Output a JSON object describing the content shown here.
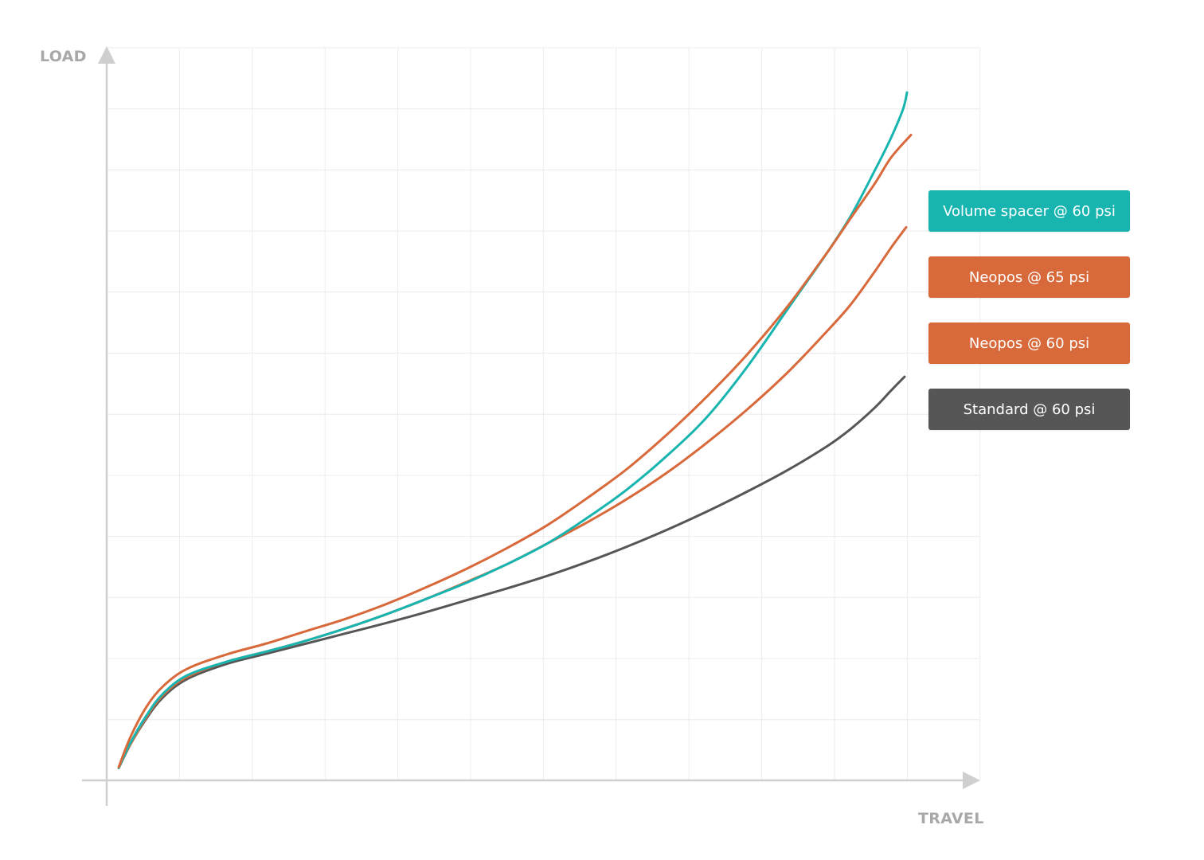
{
  "chart_data": {
    "type": "line",
    "title": "",
    "xlabel": "TRAVEL",
    "ylabel": "LOAD",
    "xlim": [
      0,
      100
    ],
    "ylim": [
      0,
      100
    ],
    "grid": true,
    "ticks_labeled": false,
    "legend_placement": "right",
    "series": [
      {
        "name": "Volume spacer @ 60 psi",
        "color": "#18b5b0",
        "x": [
          1.5,
          3,
          5,
          7,
          10,
          15,
          20,
          25,
          30,
          35,
          40,
          45,
          50,
          55,
          60,
          65,
          70,
          75,
          80,
          85,
          90,
          93,
          96,
          98,
          99.5,
          100
        ],
        "y": [
          1.7,
          5.2,
          8.9,
          11.8,
          14.3,
          16.2,
          17.6,
          19.1,
          20.8,
          22.7,
          24.8,
          27.0,
          29.5,
          32.3,
          35.8,
          39.7,
          44.3,
          49.6,
          56.4,
          64.2,
          72.0,
          77.1,
          83.3,
          87.7,
          91.6,
          93.9
        ]
      },
      {
        "name": "Neopos @ 65 psi",
        "color": "#d8693b",
        "x": [
          1.5,
          3,
          5,
          7,
          10,
          15,
          20,
          25,
          30,
          35,
          40,
          45,
          50,
          55,
          60,
          65,
          70,
          75,
          80,
          85,
          90,
          93,
          96,
          98,
          100.5
        ],
        "y": [
          1.8,
          6.0,
          10.1,
          12.8,
          15.2,
          17.2,
          18.7,
          20.4,
          22.1,
          24.1,
          26.4,
          28.9,
          31.7,
          34.8,
          38.5,
          42.5,
          47.2,
          52.4,
          58.1,
          64.6,
          72.0,
          76.8,
          81.5,
          85.0,
          88.1
        ]
      },
      {
        "name": "Neopos @ 60 psi",
        "color": "#d8693b",
        "x": [
          1.5,
          3,
          5,
          7,
          10,
          15,
          20,
          25,
          30,
          35,
          40,
          45,
          50,
          55,
          60,
          65,
          70,
          75,
          80,
          85,
          90,
          93,
          96,
          98,
          99.9
        ],
        "y": [
          1.7,
          5.0,
          8.7,
          11.6,
          14.1,
          16.2,
          17.6,
          19.1,
          20.8,
          22.7,
          24.8,
          27.1,
          29.5,
          32.3,
          35.2,
          38.4,
          42.0,
          46.1,
          50.6,
          55.6,
          61.3,
          65.0,
          69.5,
          72.7,
          75.5
        ]
      },
      {
        "name": "Standard @ 60 psi",
        "color": "#565656",
        "x": [
          1.5,
          3,
          5,
          7,
          10,
          15,
          20,
          25,
          30,
          35,
          40,
          45,
          50,
          55,
          60,
          65,
          70,
          75,
          80,
          85,
          90,
          93,
          96,
          98,
          99.7
        ],
        "y": [
          1.7,
          5.0,
          8.5,
          11.3,
          13.8,
          15.9,
          17.3,
          18.7,
          20.1,
          21.5,
          23.0,
          24.6,
          26.2,
          27.9,
          29.8,
          31.9,
          34.2,
          36.7,
          39.4,
          42.3,
          45.6,
          48.0,
          50.9,
          53.2,
          55.1
        ]
      }
    ]
  }
}
